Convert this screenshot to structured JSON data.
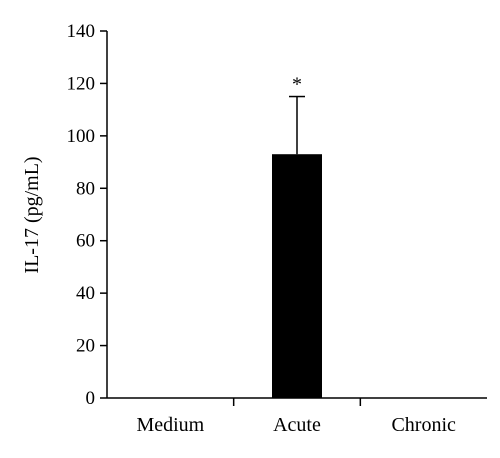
{
  "chart_data": {
    "type": "bar",
    "ylabel": "IL-17 (pg/mL)",
    "xlabel": "",
    "ylim": [
      0,
      140
    ],
    "yticks": [
      0,
      20,
      40,
      60,
      80,
      100,
      120,
      140
    ],
    "categories": [
      "Medium",
      "Acute",
      "Chronic"
    ],
    "values": [
      0,
      93,
      0
    ],
    "errors": [
      0,
      22,
      0
    ],
    "annotations": [
      "",
      "*",
      ""
    ],
    "bar_color": "#000000",
    "grid": false,
    "legend": "none"
  }
}
